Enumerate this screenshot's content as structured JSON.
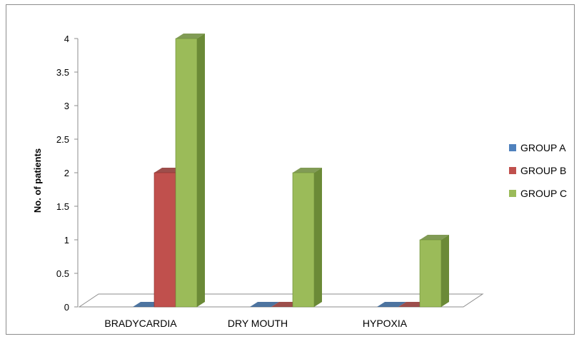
{
  "chart_data": {
    "type": "bar",
    "title": "",
    "xlabel": "",
    "ylabel": "No. of  patients",
    "ylim": [
      0,
      4
    ],
    "yticks": [
      "0",
      "0.5",
      "1",
      "1.5",
      "2",
      "2.5",
      "3",
      "3.5",
      "4"
    ],
    "categories": [
      "BRADYCARDIA",
      "DRY MOUTH",
      "HYPOXIA"
    ],
    "series": [
      {
        "name": "GROUP A",
        "values": [
          0,
          0,
          0
        ],
        "color": "#4f81bd",
        "dark": "#2e5c8f"
      },
      {
        "name": "GROUP B",
        "values": [
          2,
          0,
          0
        ],
        "color": "#c0504d",
        "dark": "#8c2f2c"
      },
      {
        "name": "GROUP C",
        "values": [
          4,
          2,
          1
        ],
        "color": "#9bbb59",
        "dark": "#6b8a37"
      }
    ],
    "legend_position": "right",
    "grid": false,
    "style": "3d-clustered-column"
  }
}
